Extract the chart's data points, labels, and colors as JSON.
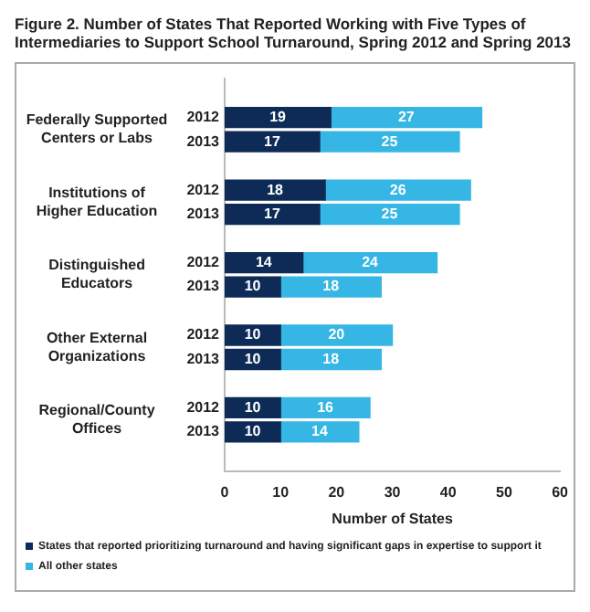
{
  "chart_data": {
    "type": "bar",
    "orientation": "horizontal",
    "stacked": true,
    "title": "Figure 2. Number of States That Reported Working with Five Types of Intermediaries to Support School Turnaround, Spring 2012 and Spring 2013",
    "xlabel": "Number of States",
    "categories": [
      "2012",
      "2013",
      "2012",
      "2013",
      "2012",
      "2013",
      "2012",
      "2013",
      "2012",
      "2013"
    ],
    "annotations": [
      "Federally Supported Centers or Labs",
      "Institutions of Higher Education",
      "Distinguished Educators",
      "Other External Organizations",
      "Regional/County Offices"
    ],
    "series": [
      {
        "name": "States that reported prioritizing turnaround and having significant gaps in expertise to support it",
        "color": "#0e2b58",
        "values": [
          19,
          17,
          18,
          17,
          14,
          10,
          10,
          10,
          10,
          10
        ]
      },
      {
        "name": "All other states",
        "color": "#35b6e4",
        "values": [
          27,
          25,
          26,
          25,
          24,
          18,
          20,
          18,
          16,
          14
        ]
      }
    ],
    "xlim": [
      0,
      60
    ],
    "xticks": [
      0,
      10,
      20,
      30,
      40,
      50,
      60
    ],
    "data_labels": true,
    "grid": false,
    "legend": "bottom"
  }
}
